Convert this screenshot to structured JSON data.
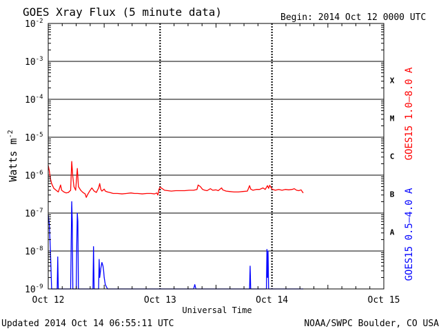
{
  "chart_data": {
    "type": "line",
    "title": "GOES Xray Flux (5 minute data)",
    "begin_label": "Begin:  2014 Oct 12 0000 UTC",
    "ylabel": "Watts m",
    "ylabel_exp": "-2",
    "xlabel": "Universal Time",
    "updated": "Updated 2014 Oct 14 06:55:11 UTC",
    "source": "NOAA/SWPC Boulder, CO USA",
    "y_scale": "log",
    "ylim": [
      1e-09,
      0.01
    ],
    "xlim_days": [
      0,
      3
    ],
    "x_ticks": [
      {
        "day": 0,
        "label": "Oct 12"
      },
      {
        "day": 1,
        "label": "Oct 13"
      },
      {
        "day": 2,
        "label": "Oct 14"
      },
      {
        "day": 3,
        "label": "Oct 15"
      }
    ],
    "y_ticks": [
      {
        "exp": -2,
        "base": "10",
        "sup": "-2"
      },
      {
        "exp": -3,
        "base": "10",
        "sup": "-3"
      },
      {
        "exp": -4,
        "base": "10",
        "sup": "-4"
      },
      {
        "exp": -5,
        "base": "10",
        "sup": "-5"
      },
      {
        "exp": -6,
        "base": "10",
        "sup": "-6"
      },
      {
        "exp": -7,
        "base": "10",
        "sup": "-7"
      },
      {
        "exp": -8,
        "base": "10",
        "sup": "-8"
      },
      {
        "exp": -9,
        "base": "10",
        "sup": "-9"
      }
    ],
    "flare_classes": [
      {
        "label": "X",
        "exp": -3.5
      },
      {
        "label": "M",
        "exp": -4.5
      },
      {
        "label": "C",
        "exp": -5.5
      },
      {
        "label": "B",
        "exp": -6.5
      },
      {
        "label": "A",
        "exp": -7.5
      }
    ],
    "grid": true,
    "series": [
      {
        "name": "GOES15 1.0–8.0 A",
        "color": "#ff0000",
        "points": [
          [
            0.0,
            1.8e-06
          ],
          [
            0.01,
            1.3e-06
          ],
          [
            0.02,
            8e-07
          ],
          [
            0.03,
            6e-07
          ],
          [
            0.05,
            4.5e-07
          ],
          [
            0.07,
            4e-07
          ],
          [
            0.09,
            3.6e-07
          ],
          [
            0.11,
            5.5e-07
          ],
          [
            0.12,
            4e-07
          ],
          [
            0.14,
            3.6e-07
          ],
          [
            0.16,
            3.4e-07
          ],
          [
            0.18,
            3.5e-07
          ],
          [
            0.2,
            4e-07
          ],
          [
            0.21,
            2.3e-06
          ],
          [
            0.22,
            9e-07
          ],
          [
            0.23,
            5e-07
          ],
          [
            0.245,
            4e-07
          ],
          [
            0.26,
            1.5e-06
          ],
          [
            0.265,
            9e-07
          ],
          [
            0.27,
            5e-07
          ],
          [
            0.29,
            4e-07
          ],
          [
            0.31,
            3.5e-07
          ],
          [
            0.33,
            3.2e-07
          ],
          [
            0.34,
            2.6e-07
          ],
          [
            0.35,
            3e-07
          ],
          [
            0.37,
            3.8e-07
          ],
          [
            0.39,
            4.6e-07
          ],
          [
            0.41,
            3.8e-07
          ],
          [
            0.43,
            3.5e-07
          ],
          [
            0.45,
            4.6e-07
          ],
          [
            0.46,
            6e-07
          ],
          [
            0.47,
            4.2e-07
          ],
          [
            0.48,
            3.8e-07
          ],
          [
            0.5,
            4.3e-07
          ],
          [
            0.51,
            3.8e-07
          ],
          [
            0.53,
            3.6e-07
          ],
          [
            0.55,
            3.5e-07
          ],
          [
            0.58,
            3.3e-07
          ],
          [
            0.62,
            3.3e-07
          ],
          [
            0.66,
            3.2e-07
          ],
          [
            0.7,
            3.3e-07
          ],
          [
            0.74,
            3.4e-07
          ],
          [
            0.77,
            3.3e-07
          ],
          [
            0.8,
            3.3e-07
          ],
          [
            0.84,
            3.2e-07
          ],
          [
            0.88,
            3.3e-07
          ],
          [
            0.92,
            3.3e-07
          ],
          [
            0.95,
            3.2e-07
          ],
          [
            0.97,
            3.4e-07
          ],
          [
            0.98,
            3e-07
          ],
          [
            0.99,
            4.2e-07
          ],
          [
            1.0,
            4.8e-07
          ],
          [
            1.02,
            4.4e-07
          ],
          [
            1.04,
            4e-07
          ],
          [
            1.07,
            3.9e-07
          ],
          [
            1.1,
            3.8e-07
          ],
          [
            1.14,
            3.9e-07
          ],
          [
            1.18,
            3.9e-07
          ],
          [
            1.22,
            3.9e-07
          ],
          [
            1.26,
            4e-07
          ],
          [
            1.3,
            4e-07
          ],
          [
            1.33,
            4.2e-07
          ],
          [
            1.34,
            5.5e-07
          ],
          [
            1.36,
            5e-07
          ],
          [
            1.38,
            4.2e-07
          ],
          [
            1.4,
            4e-07
          ],
          [
            1.42,
            3.9e-07
          ],
          [
            1.45,
            4.4e-07
          ],
          [
            1.47,
            4e-07
          ],
          [
            1.5,
            4.1e-07
          ],
          [
            1.52,
            3.9e-07
          ],
          [
            1.55,
            4.6e-07
          ],
          [
            1.56,
            4.1e-07
          ],
          [
            1.59,
            3.8e-07
          ],
          [
            1.62,
            3.7e-07
          ],
          [
            1.66,
            3.6e-07
          ],
          [
            1.7,
            3.6e-07
          ],
          [
            1.74,
            3.7e-07
          ],
          [
            1.78,
            3.8e-07
          ],
          [
            1.8,
            5.3e-07
          ],
          [
            1.81,
            4.3e-07
          ],
          [
            1.83,
            4e-07
          ],
          [
            1.86,
            4.2e-07
          ],
          [
            1.89,
            4.2e-07
          ],
          [
            1.92,
            4.6e-07
          ],
          [
            1.94,
            4.2e-07
          ],
          [
            1.96,
            5.3e-07
          ],
          [
            1.97,
            4.5e-07
          ],
          [
            1.98,
            5.4e-07
          ],
          [
            2.0,
            4.3e-07
          ],
          [
            2.03,
            4e-07
          ],
          [
            2.06,
            4.2e-07
          ],
          [
            2.09,
            4e-07
          ],
          [
            2.12,
            4.2e-07
          ],
          [
            2.15,
            4.1e-07
          ],
          [
            2.18,
            4.2e-07
          ],
          [
            2.2,
            4.4e-07
          ],
          [
            2.22,
            4e-07
          ],
          [
            2.24,
            3.9e-07
          ],
          [
            2.26,
            4.1e-07
          ],
          [
            2.27,
            3.7e-07
          ],
          [
            2.28,
            3.4e-07
          ]
        ]
      },
      {
        "name": "GOES15 0.5–4.0 A",
        "color": "#0000ff",
        "points": [
          [
            0.0,
            9e-08
          ],
          [
            0.01,
            5e-08
          ],
          [
            0.02,
            1e-08
          ],
          [
            0.03,
            1e-09
          ],
          [
            0.08,
            1e-09
          ],
          [
            0.085,
            7e-09
          ],
          [
            0.09,
            1e-09
          ],
          [
            0.2,
            1e-09
          ],
          [
            0.205,
            1.5e-08
          ],
          [
            0.21,
            2e-07
          ],
          [
            0.215,
            6e-08
          ],
          [
            0.22,
            1e-09
          ],
          [
            0.25,
            1e-09
          ],
          [
            0.255,
            1.5e-08
          ],
          [
            0.26,
            1e-07
          ],
          [
            0.265,
            6e-08
          ],
          [
            0.27,
            1e-09
          ],
          [
            0.4,
            1e-09
          ],
          [
            0.405,
            1.3e-08
          ],
          [
            0.41,
            1e-09
          ],
          [
            0.45,
            1e-09
          ],
          [
            0.455,
            6e-09
          ],
          [
            0.46,
            2e-09
          ],
          [
            0.47,
            3.5e-09
          ],
          [
            0.48,
            5e-09
          ],
          [
            0.49,
            4e-09
          ],
          [
            0.495,
            3e-09
          ],
          [
            0.5,
            2e-09
          ],
          [
            0.51,
            1.3e-09
          ],
          [
            0.53,
            1e-09
          ],
          [
            0.6,
            1e-09
          ],
          [
            1.3,
            1e-09
          ],
          [
            1.31,
            1.3e-09
          ],
          [
            1.32,
            1e-09
          ],
          [
            1.8,
            1e-09
          ],
          [
            1.805,
            4e-09
          ],
          [
            1.81,
            1e-09
          ],
          [
            1.95,
            1e-09
          ],
          [
            1.955,
            1.1e-08
          ],
          [
            1.96,
            2e-09
          ],
          [
            1.965,
            1e-08
          ],
          [
            1.97,
            1e-09
          ],
          [
            2.28,
            1e-09
          ]
        ]
      }
    ]
  }
}
